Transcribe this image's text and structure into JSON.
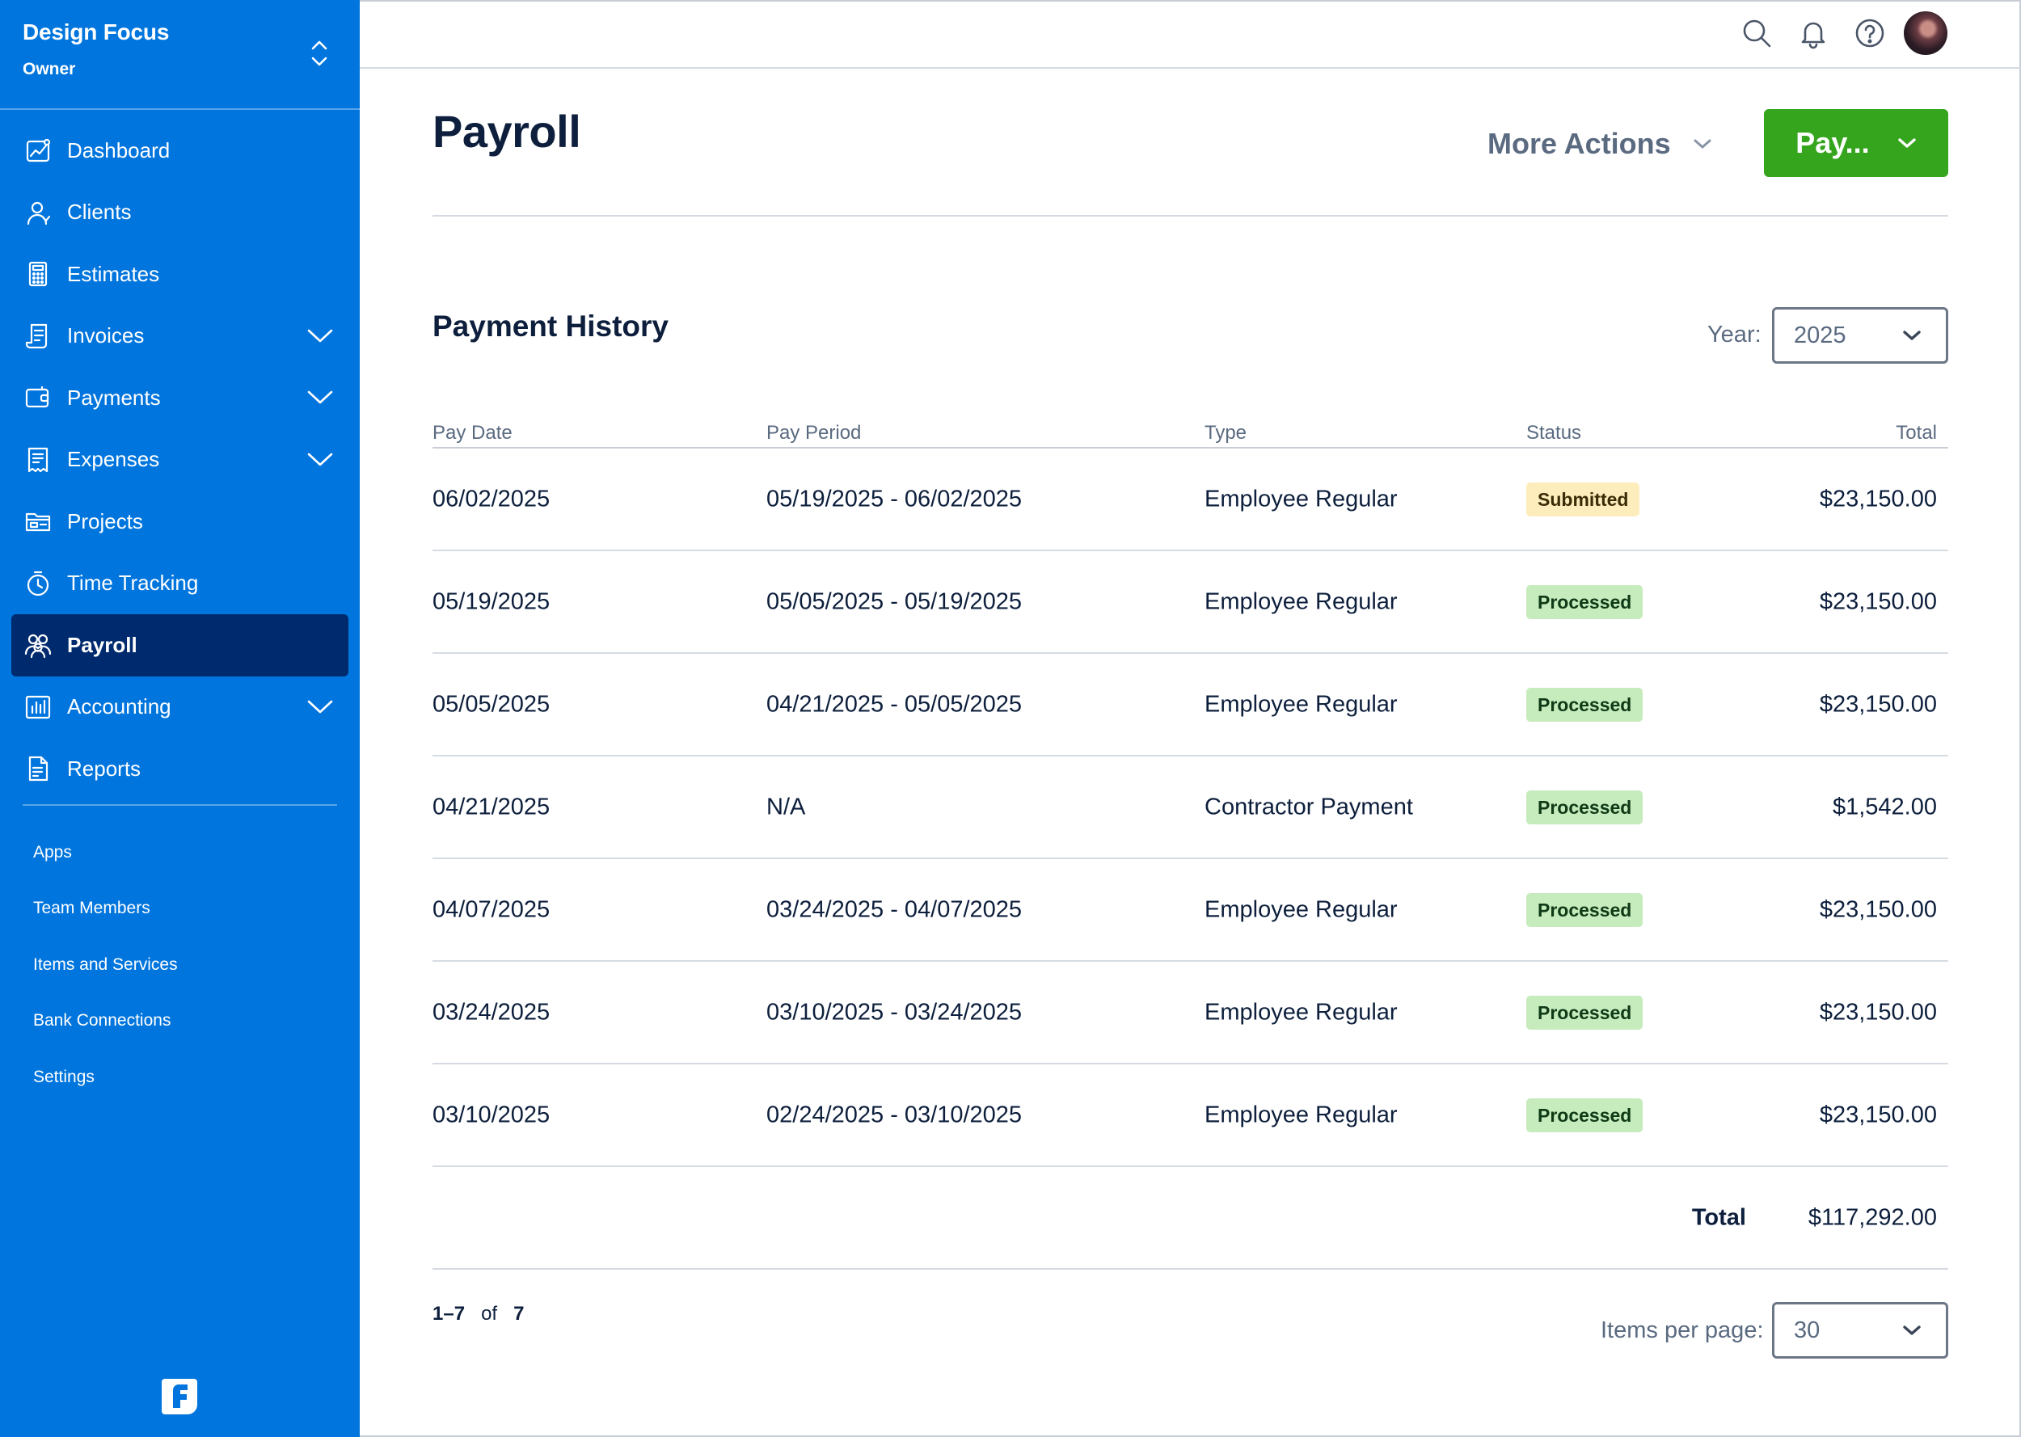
{
  "sidebar": {
    "business_name": "Design Focus",
    "role": "Owner",
    "items": [
      {
        "label": "Dashboard",
        "icon": "chart-line-icon",
        "expandable": false,
        "active": false
      },
      {
        "label": "Clients",
        "icon": "user-icon",
        "expandable": false,
        "active": false
      },
      {
        "label": "Estimates",
        "icon": "calculator-icon",
        "expandable": false,
        "active": false
      },
      {
        "label": "Invoices",
        "icon": "invoice-icon",
        "expandable": true,
        "active": false
      },
      {
        "label": "Payments",
        "icon": "wallet-icon",
        "expandable": true,
        "active": false
      },
      {
        "label": "Expenses",
        "icon": "receipt-icon",
        "expandable": true,
        "active": false
      },
      {
        "label": "Projects",
        "icon": "folder-icon",
        "expandable": false,
        "active": false
      },
      {
        "label": "Time Tracking",
        "icon": "stopwatch-icon",
        "expandable": false,
        "active": false
      },
      {
        "label": "Payroll",
        "icon": "people-icon",
        "expandable": false,
        "active": true
      },
      {
        "label": "Accounting",
        "icon": "bar-chart-icon",
        "expandable": true,
        "active": false
      },
      {
        "label": "Reports",
        "icon": "document-icon",
        "expandable": false,
        "active": false
      }
    ],
    "sub_items": [
      "Apps",
      "Team Members",
      "Items and Services",
      "Bank Connections",
      "Settings"
    ],
    "logo_letter": "F"
  },
  "topbar": {
    "icons": [
      "search-icon",
      "bell-icon",
      "help-icon"
    ]
  },
  "main": {
    "title": "Payroll",
    "more_actions_label": "More Actions",
    "pay_button_label": "Pay...",
    "section_title": "Payment History",
    "year_label": "Year:",
    "year_value": "2025",
    "columns": [
      "Pay Date",
      "Pay Period",
      "Type",
      "Status",
      "Total"
    ],
    "rows": [
      {
        "pay_date": "06/02/2025",
        "pay_period": "05/19/2025 - 06/02/2025",
        "type": "Employee Regular",
        "status": "Submitted",
        "total": "$23,150.00"
      },
      {
        "pay_date": "05/19/2025",
        "pay_period": "05/05/2025 - 05/19/2025",
        "type": "Employee Regular",
        "status": "Processed",
        "total": "$23,150.00"
      },
      {
        "pay_date": "05/05/2025",
        "pay_period": "04/21/2025 - 05/05/2025",
        "type": "Employee Regular",
        "status": "Processed",
        "total": "$23,150.00"
      },
      {
        "pay_date": "04/21/2025",
        "pay_period": "N/A",
        "type": "Contractor Payment",
        "status": "Processed",
        "total": "$1,542.00"
      },
      {
        "pay_date": "04/07/2025",
        "pay_period": "03/24/2025 - 04/07/2025",
        "type": "Employee Regular",
        "status": "Processed",
        "total": "$23,150.00"
      },
      {
        "pay_date": "03/24/2025",
        "pay_period": "03/10/2025 - 03/24/2025",
        "type": "Employee Regular",
        "status": "Processed",
        "total": "$23,150.00"
      },
      {
        "pay_date": "03/10/2025",
        "pay_period": "02/24/2025 - 03/10/2025",
        "type": "Employee Regular",
        "status": "Processed",
        "total": "$23,150.00"
      }
    ],
    "total_label": "Total",
    "total_value": "$117,292.00",
    "pager": {
      "range": "1–7",
      "of_label": "of",
      "count": "7"
    },
    "items_per_page_label": "Items per page:",
    "items_per_page_value": "30"
  },
  "colors": {
    "sidebar_bg": "#0075dd",
    "active_nav_bg": "#002a6e",
    "pay_button": "#35a51e",
    "submitted_badge": "#fdedbd",
    "processed_badge": "#c6ebbd"
  }
}
